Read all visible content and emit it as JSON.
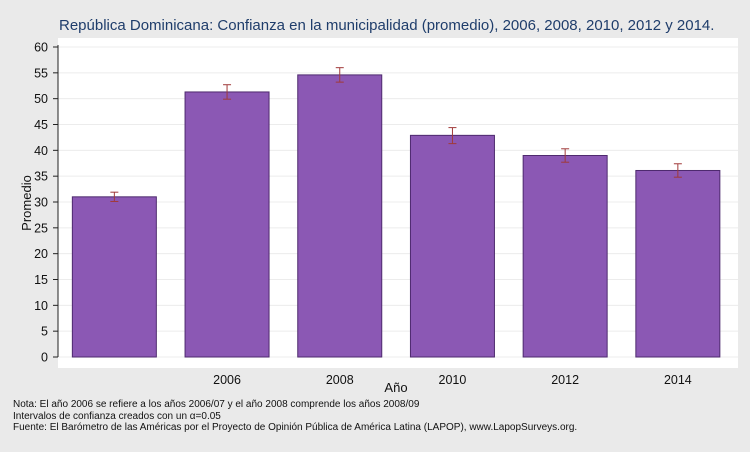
{
  "chart_data": {
    "type": "bar",
    "title": "República Dominicana: Confianza en la municipalidad (promedio), 2006, 2008, 2010, 2012 y 2014.",
    "xlabel": "Año",
    "ylabel": "Promedio",
    "categories": [
      "",
      "2006",
      "2008",
      "2010",
      "2012",
      "2014"
    ],
    "values": [
      31.0,
      51.3,
      54.6,
      42.9,
      39.0,
      36.1
    ],
    "ci_low": [
      30.1,
      49.9,
      53.2,
      41.3,
      37.7,
      34.8
    ],
    "ci_high": [
      31.9,
      52.7,
      56.0,
      44.4,
      40.3,
      37.4
    ],
    "ylim": [
      0,
      60
    ],
    "yticks": [
      0,
      5,
      10,
      15,
      20,
      25,
      30,
      35,
      40,
      45,
      50,
      55,
      60
    ],
    "grid": true,
    "bar_color": "#8b58b4",
    "bar_edge_color": "#4e2a6e",
    "errorbar_color": "#a03a3a",
    "title_color": "#1f3d6b"
  },
  "notes": {
    "line1": "Nota: El año 2006 se refiere a los años 2006/07 y el año 2008 comprende los años 2008/09",
    "line2": "Intervalos de confianza creados con un α=0.05",
    "line3": "Fuente: El Barómetro de las Américas por el Proyecto de Opinión Pública de América Latina (LAPOP), www.LapopSurveys.org."
  }
}
